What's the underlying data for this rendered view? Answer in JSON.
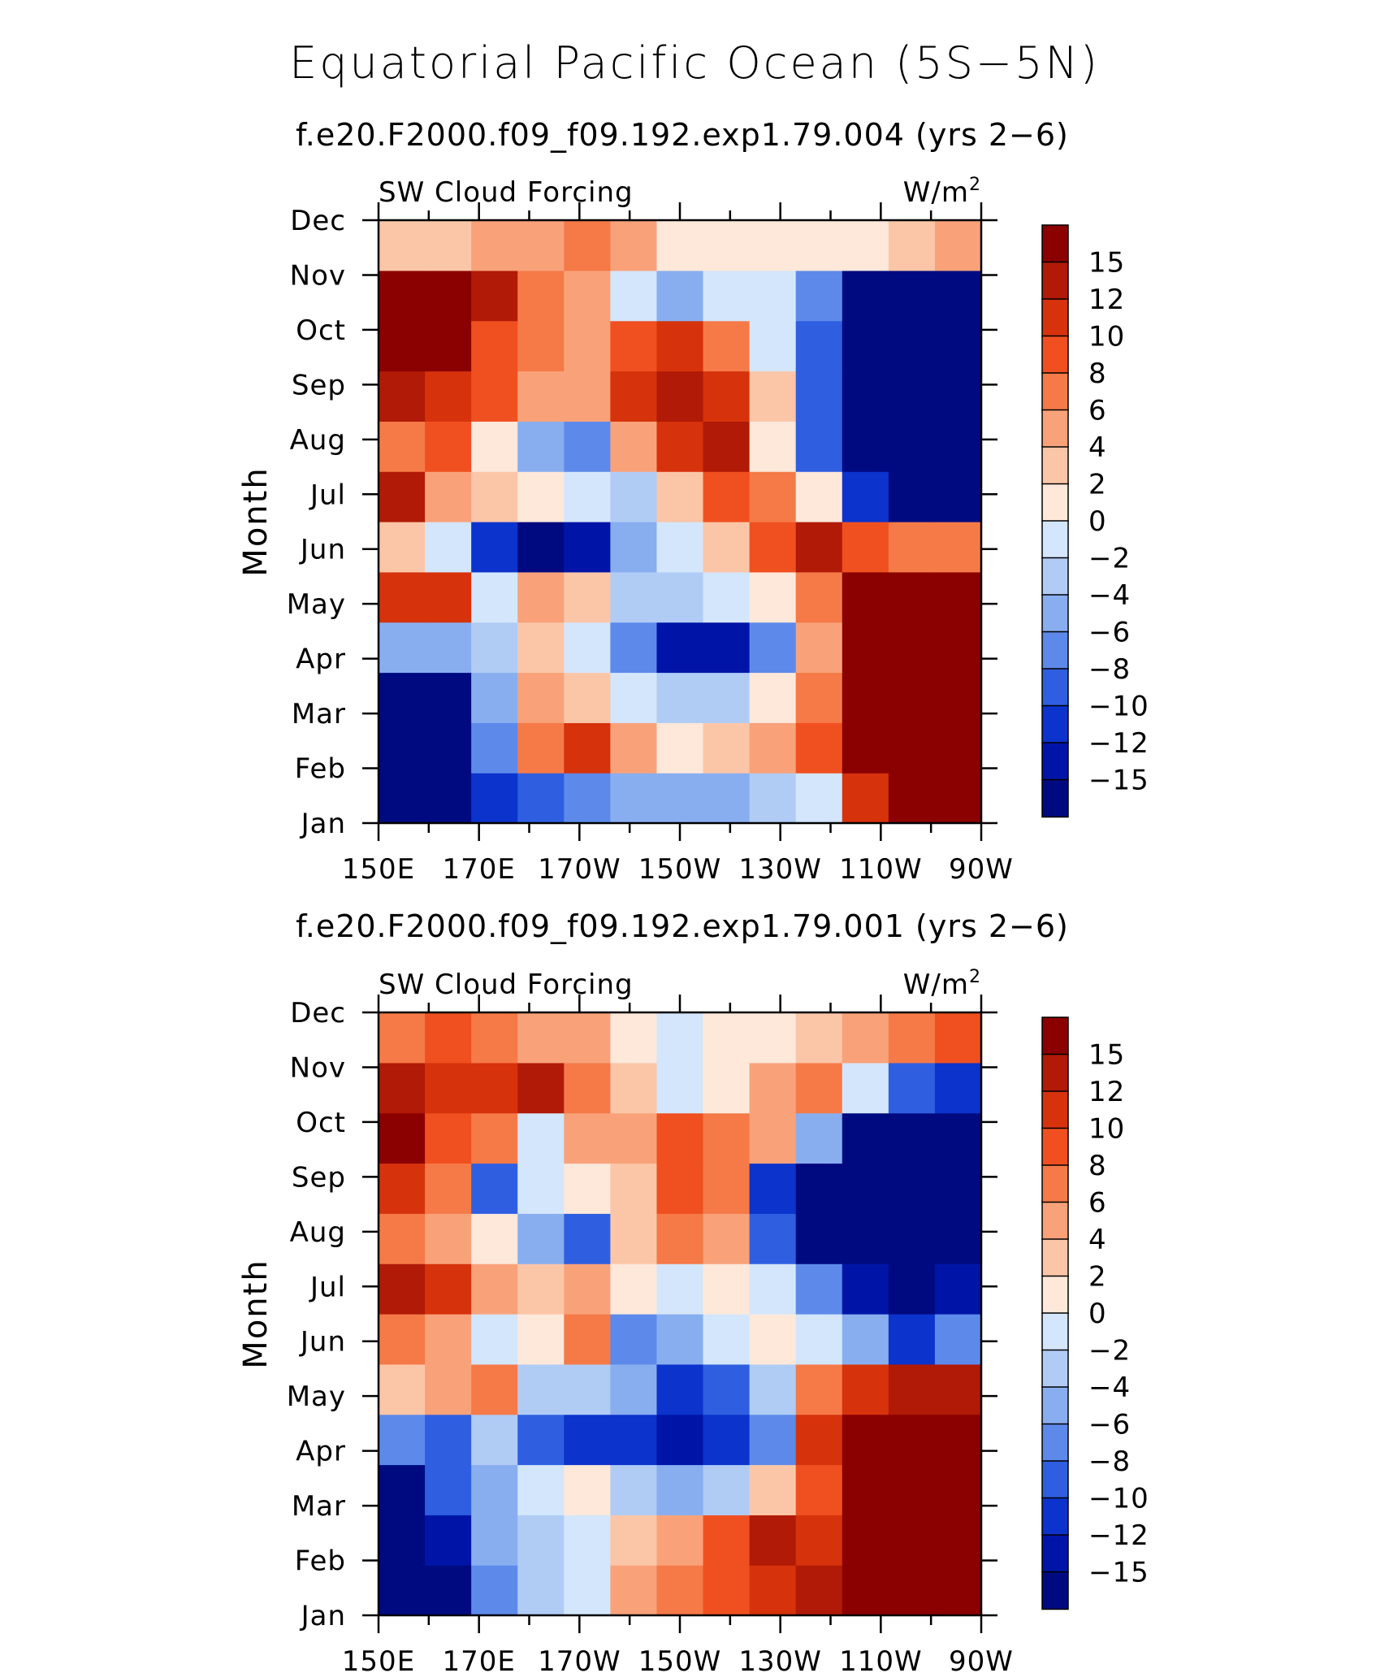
{
  "page": {
    "title": "Equatorial Pacific Ocean (5S−5N)"
  },
  "common": {
    "variable_label": "SW Cloud Forcing",
    "units_base": "W/m",
    "units_exp": "2",
    "ylabel": "Month",
    "months": [
      "Jan",
      "Feb",
      "Mar",
      "Apr",
      "May",
      "Jun",
      "Jul",
      "Aug",
      "Sep",
      "Oct",
      "Nov",
      "Dec"
    ],
    "xticks": [
      "150E",
      "170E",
      "170W",
      "150W",
      "130W",
      "110W",
      "90W"
    ],
    "colorbar": {
      "labels": [
        "15",
        "12",
        "10",
        "8",
        "6",
        "4",
        "2",
        "0",
        "−2",
        "−4",
        "−6",
        "−8",
        "−10",
        "−12",
        "−15"
      ],
      "colors_top_to_bottom": [
        "#8b0000",
        "#b01a06",
        "#d6320c",
        "#f05020",
        "#f57a48",
        "#f9a27a",
        "#fbc6a8",
        "#fde8da",
        "#d4e6fb",
        "#b0ccf5",
        "#88aef0",
        "#5d8aea",
        "#2f5fe0",
        "#0c33cc",
        "#0015a8",
        "#000a80"
      ]
    }
  },
  "chart_data": [
    {
      "type": "heatmap",
      "subtitle": "f.e20.F2000.f09_f09.192.exp1.79.004 (yrs 2−6)",
      "title": "SW Cloud Forcing",
      "units": "W/m²",
      "xlabel": "",
      "ylabel": "Month",
      "x": [
        "150E",
        "160E",
        "170E",
        "180",
        "170W",
        "160W",
        "150W",
        "140W",
        "130W",
        "120W",
        "110W",
        "100W",
        "90W"
      ],
      "y": [
        "Jan",
        "Feb",
        "Mar",
        "Apr",
        "May",
        "Jun",
        "Jul",
        "Aug",
        "Sep",
        "Oct",
        "Nov",
        "Dec"
      ],
      "z": [
        [
          -16,
          -16,
          -12,
          -10,
          -8,
          -6,
          -6,
          -6,
          -4,
          -2,
          10,
          16,
          16
        ],
        [
          -16,
          -16,
          -8,
          6,
          10,
          4,
          0,
          2,
          4,
          8,
          16,
          16,
          16
        ],
        [
          -16,
          -16,
          -6,
          4,
          2,
          -2,
          -4,
          -4,
          0,
          6,
          16,
          16,
          16
        ],
        [
          -6,
          -6,
          -4,
          2,
          -2,
          -8,
          -14,
          -14,
          -8,
          4,
          16,
          16,
          16
        ],
        [
          10,
          10,
          -2,
          4,
          2,
          -4,
          -4,
          -2,
          0,
          6,
          16,
          16,
          16
        ],
        [
          2,
          -2,
          -12,
          -16,
          -14,
          -6,
          -2,
          2,
          8,
          12,
          8,
          6,
          6
        ],
        [
          12,
          4,
          2,
          0,
          -2,
          -4,
          2,
          8,
          6,
          0,
          -12,
          -16,
          -16
        ],
        [
          6,
          8,
          0,
          -6,
          -8,
          4,
          10,
          12,
          0,
          -10,
          -16,
          -16,
          -16
        ],
        [
          12,
          10,
          8,
          4,
          4,
          10,
          14,
          10,
          2,
          -10,
          -16,
          -16,
          -16
        ],
        [
          16,
          16,
          8,
          6,
          4,
          8,
          10,
          6,
          -2,
          -10,
          -16,
          -16,
          -16
        ],
        [
          16,
          16,
          12,
          6,
          4,
          -2,
          -6,
          -2,
          -2,
          -8,
          -16,
          -16,
          -16
        ],
        [
          2,
          2,
          4,
          4,
          6,
          4,
          0,
          0,
          0,
          0,
          0,
          2,
          4
        ]
      ],
      "colorbar_levels": [
        -15,
        -12,
        -10,
        -8,
        -6,
        -4,
        -2,
        0,
        2,
        4,
        6,
        8,
        10,
        12,
        15
      ]
    },
    {
      "type": "heatmap",
      "subtitle": "f.e20.F2000.f09_f09.192.exp1.79.001 (yrs 2−6)",
      "title": "SW Cloud Forcing",
      "units": "W/m²",
      "xlabel": "",
      "ylabel": "Month",
      "x": [
        "150E",
        "160E",
        "170E",
        "180",
        "170W",
        "160W",
        "150W",
        "140W",
        "130W",
        "120W",
        "110W",
        "100W",
        "90W"
      ],
      "y": [
        "Jan",
        "Feb",
        "Mar",
        "Apr",
        "May",
        "Jun",
        "Jul",
        "Aug",
        "Sep",
        "Oct",
        "Nov",
        "Dec"
      ],
      "z": [
        [
          -16,
          -16,
          -8,
          -4,
          -2,
          4,
          6,
          8,
          10,
          14,
          16,
          16,
          16
        ],
        [
          -16,
          -14,
          -6,
          -4,
          -2,
          2,
          4,
          8,
          12,
          10,
          16,
          16,
          16
        ],
        [
          -16,
          -10,
          -6,
          -2,
          0,
          -4,
          -6,
          -4,
          2,
          8,
          16,
          16,
          16
        ],
        [
          -8,
          -10,
          -4,
          -10,
          -12,
          -12,
          -14,
          -12,
          -8,
          10,
          16,
          16,
          16
        ],
        [
          2,
          4,
          6,
          -4,
          -4,
          -6,
          -12,
          -10,
          -4,
          6,
          10,
          12,
          12
        ],
        [
          6,
          4,
          -2,
          0,
          6,
          -8,
          -6,
          -2,
          0,
          -2,
          -6,
          -12,
          -8
        ],
        [
          12,
          10,
          4,
          2,
          4,
          0,
          -2,
          0,
          -2,
          -8,
          -14,
          -16,
          -14
        ],
        [
          6,
          4,
          0,
          -6,
          -10,
          2,
          6,
          4,
          -10,
          -16,
          -16,
          -16,
          -16
        ],
        [
          10,
          6,
          -10,
          -2,
          0,
          2,
          8,
          6,
          -12,
          -16,
          -16,
          -16,
          -16
        ],
        [
          16,
          8,
          6,
          -2,
          4,
          4,
          8,
          6,
          4,
          -6,
          -16,
          -16,
          -16
        ],
        [
          12,
          10,
          10,
          12,
          6,
          2,
          -2,
          0,
          4,
          6,
          -2,
          -10,
          -12
        ],
        [
          6,
          8,
          6,
          4,
          4,
          0,
          -2,
          0,
          0,
          2,
          4,
          6,
          8
        ]
      ],
      "colorbar_levels": [
        -15,
        -12,
        -10,
        -8,
        -6,
        -4,
        -2,
        0,
        2,
        4,
        6,
        8,
        10,
        12,
        15
      ]
    }
  ]
}
